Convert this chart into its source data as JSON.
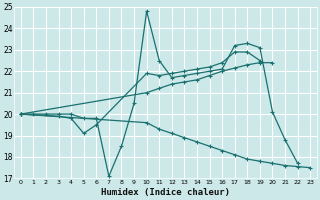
{
  "xlabel": "Humidex (Indice chaleur)",
  "bg_color": "#cce8e8",
  "grid_color": "#ffffff",
  "line_color": "#1a7070",
  "xlim": [
    -0.5,
    23.5
  ],
  "ylim": [
    17,
    25
  ],
  "xticks": [
    0,
    1,
    2,
    3,
    4,
    5,
    6,
    7,
    8,
    9,
    10,
    11,
    12,
    13,
    14,
    15,
    16,
    17,
    18,
    19,
    20,
    21,
    22,
    23
  ],
  "yticks": [
    17,
    18,
    19,
    20,
    21,
    22,
    23,
    24,
    25
  ],
  "lines": [
    {
      "x": [
        0,
        1,
        2,
        3,
        4,
        5,
        6,
        7,
        8,
        9,
        10,
        11,
        12,
        13,
        14,
        15,
        16,
        17,
        18,
        19,
        20,
        21,
        22
      ],
      "y": [
        20.0,
        20.0,
        20.0,
        20.0,
        20.0,
        19.8,
        19.8,
        17.1,
        18.5,
        20.5,
        24.8,
        22.5,
        21.7,
        21.8,
        21.9,
        22.0,
        22.1,
        23.2,
        23.3,
        23.1,
        20.1,
        18.8,
        17.7
      ]
    },
    {
      "x": [
        0,
        3,
        4,
        5,
        6,
        10,
        11,
        12,
        13,
        14,
        15,
        16,
        17,
        18,
        19
      ],
      "y": [
        20.0,
        19.9,
        19.8,
        19.1,
        19.5,
        21.9,
        21.8,
        21.9,
        22.0,
        22.1,
        22.2,
        22.4,
        22.9,
        22.9,
        22.5
      ]
    },
    {
      "x": [
        0,
        10,
        11,
        12,
        13,
        14,
        15,
        16,
        17,
        18,
        19,
        20
      ],
      "y": [
        20.0,
        21.0,
        21.2,
        21.4,
        21.5,
        21.6,
        21.8,
        22.0,
        22.15,
        22.3,
        22.4,
        22.4
      ]
    },
    {
      "x": [
        0,
        10,
        11,
        12,
        13,
        14,
        15,
        16,
        17,
        18,
        19,
        20,
        21,
        22,
        23
      ],
      "y": [
        20.0,
        19.6,
        19.3,
        19.1,
        18.9,
        18.7,
        18.5,
        18.3,
        18.1,
        17.9,
        17.8,
        17.7,
        17.6,
        17.55,
        17.5
      ]
    }
  ]
}
